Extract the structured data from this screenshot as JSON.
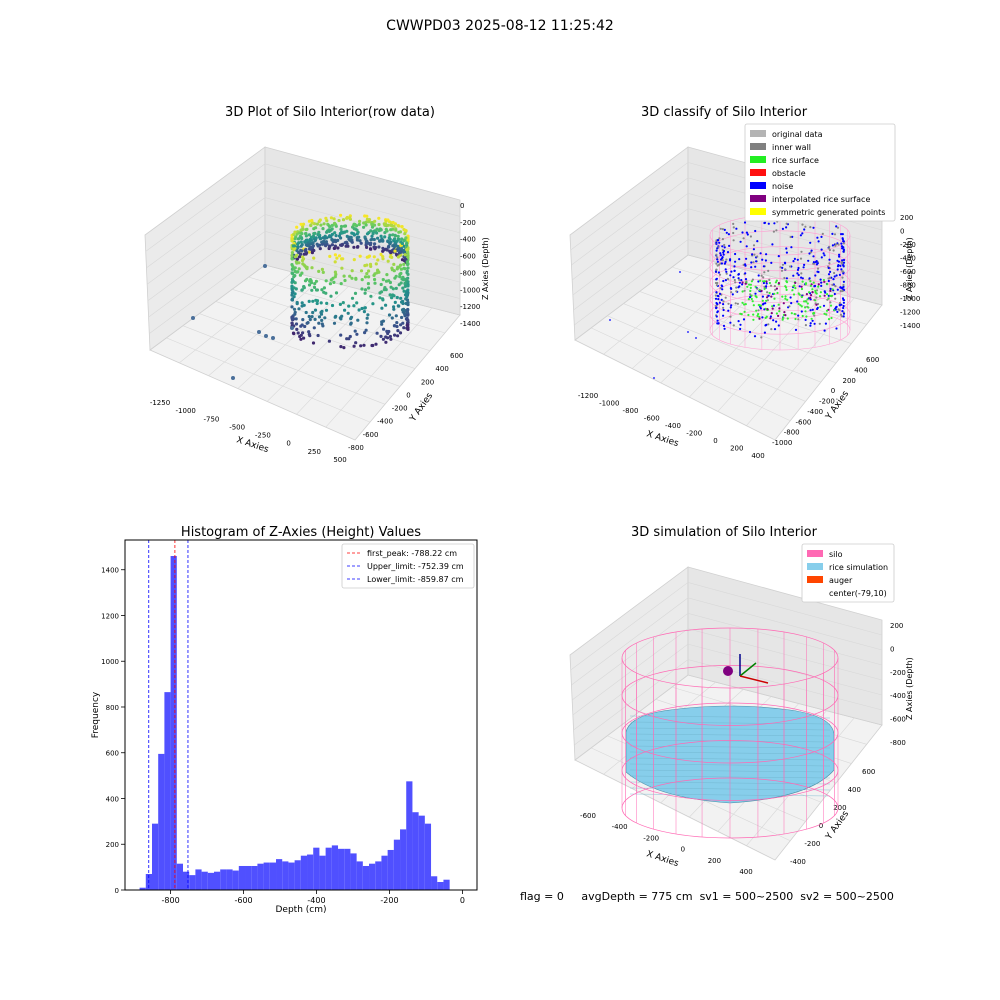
{
  "figure": {
    "suptitle": "CWWPD03 2025-08-12 11:25:42",
    "footer": {
      "flag": "flag = 0",
      "avg_depth": "avgDepth = 775 cm",
      "sv1": "sv1 = 500~2500",
      "sv2": "sv2 = 500~2500"
    }
  },
  "chart_data": [
    {
      "type": "scatter",
      "title": "3D Plot of Silo Interior(row data)",
      "xlabel": "X Axies",
      "ylabel": "Y Axies",
      "zlabel": "Z Axies (Depth)",
      "xticks": [
        "-1250",
        "-1000",
        "-750",
        "-500",
        "-250",
        "0",
        "250",
        "500"
      ],
      "yticks": [
        "-800",
        "-600",
        "-400",
        "-200",
        "0",
        "200",
        "400",
        "600"
      ],
      "zticks": [
        "0",
        "-200",
        "-400",
        "-600",
        "-800",
        "-1000",
        "-1200",
        "-1400"
      ],
      "colormap": "viridis",
      "grid": true
    },
    {
      "type": "scatter",
      "title": "3D classify of Silo Interior",
      "xlabel": "X Axies",
      "ylabel": "Y Axies",
      "zlabel": "Z Axies (Depth)",
      "xticks": [
        "-1200",
        "-1000",
        "-800",
        "-600",
        "-400",
        "-200",
        "0",
        "200",
        "400"
      ],
      "yticks": [
        "-1000",
        "-800",
        "-600",
        "-400",
        "-200",
        "0",
        "200",
        "400",
        "600"
      ],
      "zticks": [
        "200",
        "0",
        "-200",
        "-400",
        "-600",
        "-800",
        "-1000",
        "-1200",
        "-1400"
      ],
      "legend_position": "top-right",
      "legend": [
        {
          "label": "original data",
          "color": "#b4b4b4"
        },
        {
          "label": "inner wall",
          "color": "#808080"
        },
        {
          "label": "rice surface",
          "color": "#22ee22"
        },
        {
          "label": "obstacle",
          "color": "#ff1010"
        },
        {
          "label": "noise",
          "color": "#0000ff"
        },
        {
          "label": "interpolated rice surface",
          "color": "#800080"
        },
        {
          "label": "symmetric generated points",
          "color": "#ffff00"
        }
      ],
      "grid": true
    },
    {
      "type": "bar",
      "title": "Histogram of Z-Axies (Height) Values",
      "xlabel": "Depth (cm)",
      "ylabel": "Frequency",
      "xlim": [
        -925,
        40
      ],
      "ylim": [
        0,
        1530
      ],
      "xticks": [
        "-800",
        "-600",
        "-400",
        "-200",
        "0"
      ],
      "yticks": [
        "0",
        "200",
        "400",
        "600",
        "800",
        "1000",
        "1200",
        "1400"
      ],
      "bar_color": "#5050ff",
      "bin_width": 17,
      "bin_start": -885,
      "values": [
        10,
        70,
        290,
        595,
        865,
        1460,
        115,
        80,
        65,
        90,
        80,
        75,
        80,
        90,
        90,
        85,
        105,
        105,
        105,
        115,
        120,
        120,
        135,
        125,
        120,
        130,
        150,
        155,
        185,
        150,
        185,
        195,
        180,
        180,
        160,
        125,
        105,
        115,
        125,
        150,
        175,
        220,
        265,
        475,
        340,
        325,
        290,
        60,
        35,
        45
      ],
      "lines": [
        {
          "label": "first_peak: -788.22 cm",
          "x": -788.22,
          "color": "#ff0000"
        },
        {
          "label": "Upper_limit: -752.39 cm",
          "x": -752.39,
          "color": "#0000ff"
        },
        {
          "label": "Lower_limit: -859.87 cm",
          "x": -859.87,
          "color": "#0000ff"
        }
      ],
      "legend_position": "top-right",
      "grid": false
    },
    {
      "type": "scatter",
      "title": "3D simulation of Silo Interior",
      "xlabel": "X Axies",
      "ylabel": "Y Axies",
      "zlabel": "Z Axies (Depth)",
      "xticks": [
        "-600",
        "-400",
        "-200",
        "0",
        "200",
        "400"
      ],
      "yticks": [
        "-400",
        "-200",
        "0",
        "200",
        "400",
        "600"
      ],
      "zticks": [
        "200",
        "0",
        "-200",
        "-400",
        "-600",
        "-800"
      ],
      "legend_position": "top-right",
      "legend": [
        {
          "label": "silo",
          "color": "#ff69b4"
        },
        {
          "label": "rice simulation",
          "color": "#87ceeb"
        },
        {
          "label": "auger",
          "color": "#ff4500"
        },
        {
          "label": "center(-79,10)",
          "color": "#ffffff"
        }
      ],
      "grid": true
    }
  ]
}
